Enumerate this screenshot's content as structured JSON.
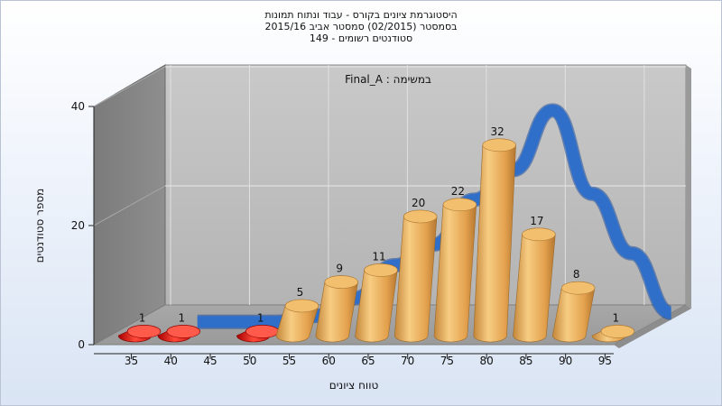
{
  "chart_data": {
    "type": "bar",
    "title": "היסטוגרמת ציונים בקורס - עבוד ונתוח תמונות",
    "subtitle": "בסמסטר  (02/2015)  סמסטר אביב 2015/16",
    "subtitle2": "סטודנטים רשומים - 149",
    "annotation": "במשימה : Final_A",
    "xlabel": "טווח ציונים",
    "ylabel": "מספר סטודנטים",
    "categories": [
      "35",
      "40",
      "45",
      "50",
      "55",
      "60",
      "65",
      "70",
      "75",
      "80",
      "85",
      "90",
      "95"
    ],
    "values": [
      1,
      1,
      0,
      1,
      5,
      9,
      11,
      20,
      22,
      32,
      17,
      8,
      1
    ],
    "bar_colors": [
      "#e01010",
      "#e01010",
      "#e01010",
      "#e01010",
      "#e9a94e",
      "#e9a94e",
      "#e9a94e",
      "#e9a94e",
      "#e9a94e",
      "#e9a94e",
      "#e9a94e",
      "#e9a94e",
      "#e9a94e"
    ],
    "ylim": [
      0,
      40
    ],
    "yticks": [
      0,
      20,
      40
    ],
    "curve": {
      "x": [
        40,
        45,
        50,
        55,
        60,
        65,
        70,
        75,
        80,
        85,
        90,
        95,
        100
      ],
      "values": [
        0.5,
        0.5,
        0.5,
        1.5,
        4.5,
        10,
        13.5,
        21,
        26,
        36,
        22,
        12,
        2
      ],
      "color": "#2f6fca"
    },
    "grid": true,
    "legend": "none"
  }
}
